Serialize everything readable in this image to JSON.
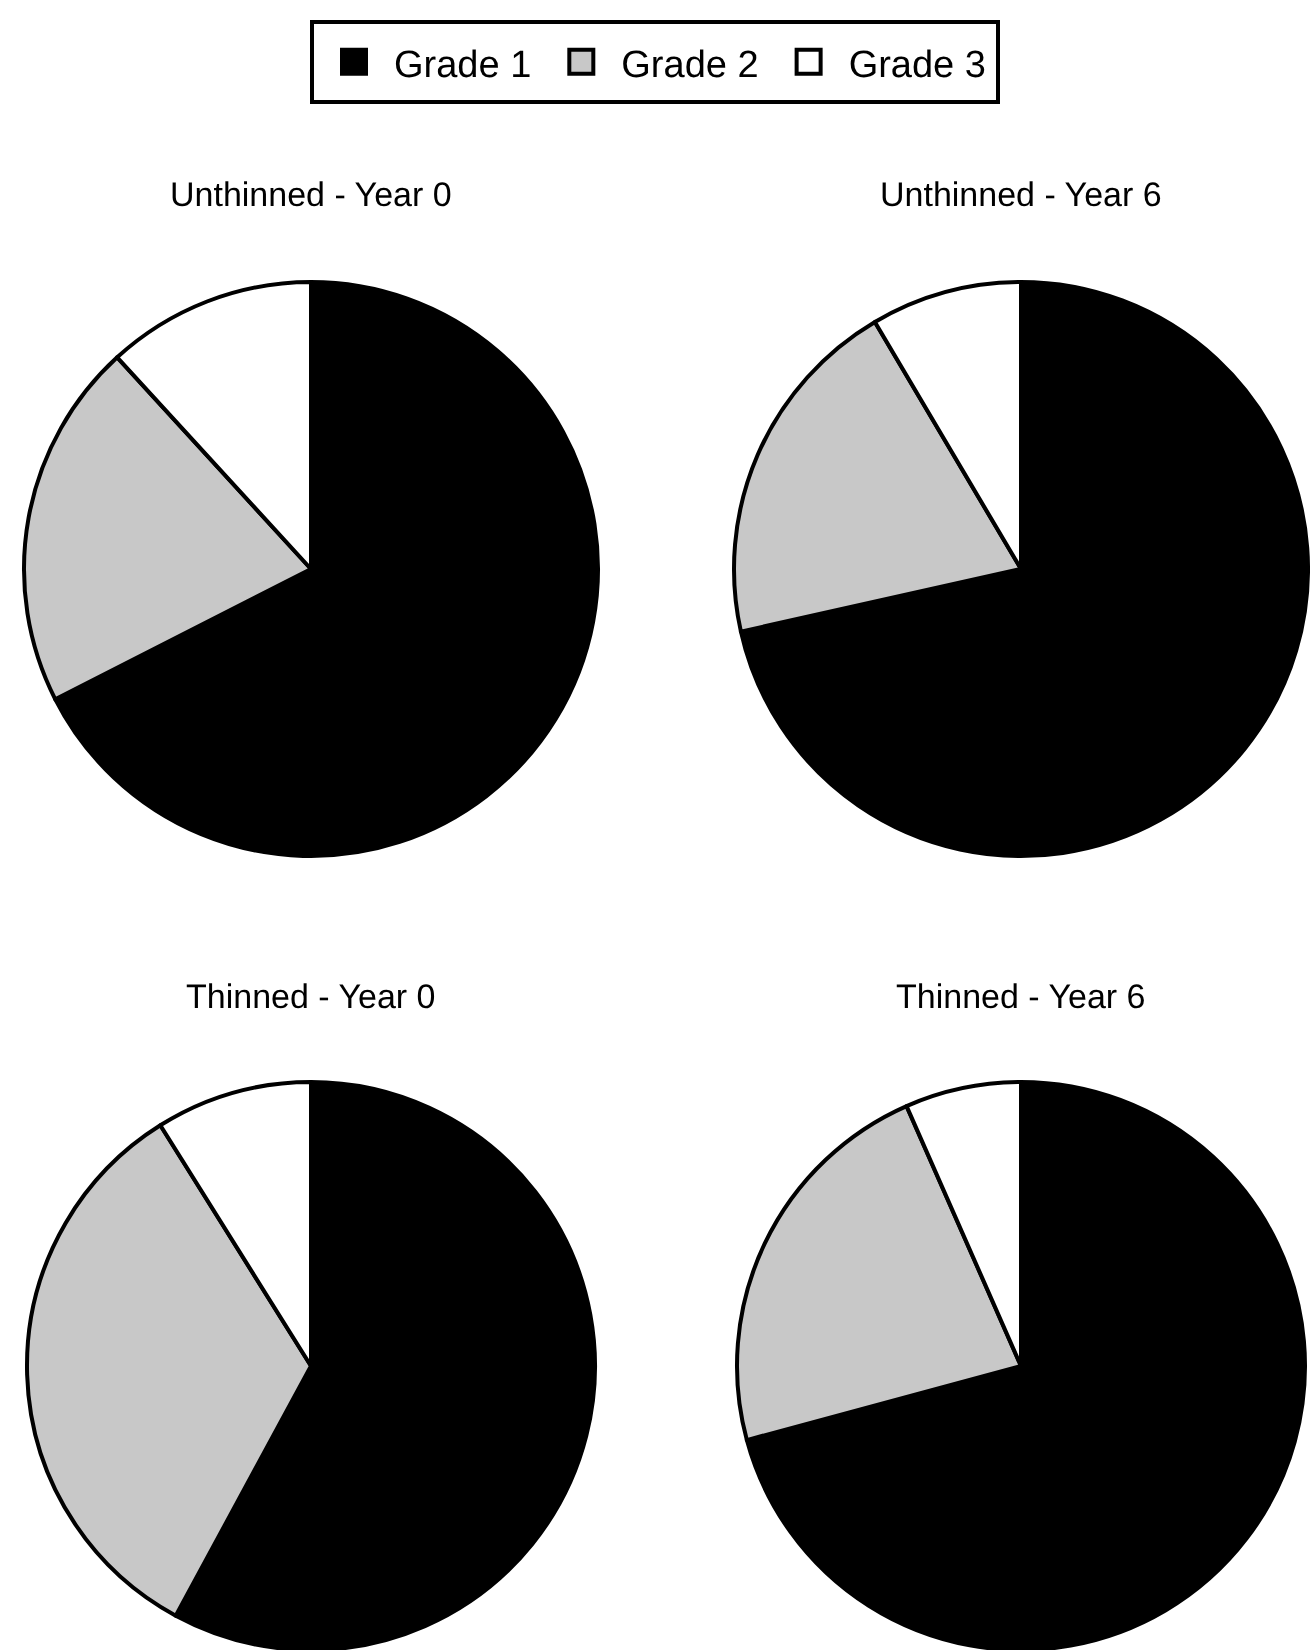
{
  "chart_data": [
    {
      "type": "pie",
      "title": "Unthinned - Year 0",
      "categories": [
        "Grade 1",
        "Grade 2",
        "Grade 3"
      ],
      "values": [
        67.5,
        20.7,
        11.8
      ],
      "colors": [
        "#000000",
        "#c8c8c8",
        "#ffffff"
      ],
      "legend": "top"
    },
    {
      "type": "pie",
      "title": "Unthinned - Year 6",
      "categories": [
        null,
        null,
        null
      ],
      "values": [
        71.5,
        20.0,
        8.5
      ],
      "colors": [
        "#000000",
        "#c8c8c8",
        "#ffffff"
      ]
    },
    {
      "type": "pie",
      "title": "Thinned - Year 0",
      "categories": [
        null,
        null,
        null
      ],
      "values": [
        57.9,
        33.2,
        8.9
      ],
      "colors": [
        "#000000",
        "#c8c8c8",
        "#ffffff"
      ]
    },
    {
      "type": "pie",
      "title": "Thinned - Year 6",
      "categories": [
        null,
        null,
        null
      ],
      "values": [
        70.8,
        22.6,
        6.6
      ],
      "colors": [
        "#000000",
        "#c8c8c8",
        "#ffffff"
      ]
    }
  ]
}
